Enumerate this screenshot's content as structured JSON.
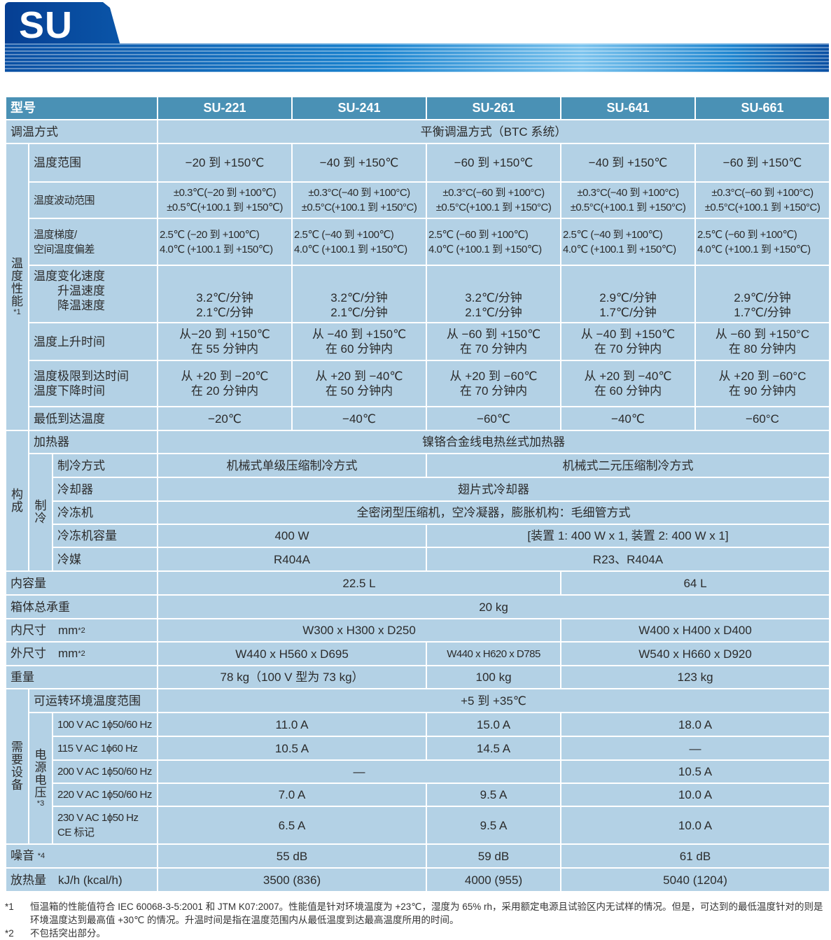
{
  "banner": {
    "title": "SU"
  },
  "colors": {
    "header_bg": "#4a91b5",
    "cell_bg": "#b3d1e5",
    "banner_blue": "#0a4fa3"
  },
  "groups": {
    "perf": {
      "label": "温度性能",
      "note": "*1"
    },
    "build": {
      "label": "构成",
      "note": ""
    },
    "need": {
      "label": "需要设备",
      "note": ""
    }
  },
  "subgroups": {
    "cool": {
      "label": "制冷",
      "note": ""
    },
    "power": {
      "label": "电源电压",
      "note": "*3"
    }
  },
  "table": {
    "header": {
      "label": "型号",
      "models": [
        "SU-221",
        "SU-241",
        "SU-261",
        "SU-641",
        "SU-661"
      ]
    },
    "rows": [
      {
        "label": "调温方式",
        "cells": [
          {
            "t": "平衡调温方式（BTC 系统）",
            "span": 5
          }
        ]
      },
      {
        "group": "perf",
        "label": "温度范围",
        "cells": [
          {
            "t": "−20 到 +150℃"
          },
          {
            "t": "−40 到 +150℃"
          },
          {
            "t": "−60 到 +150℃"
          },
          {
            "t": "−40 到 +150℃"
          },
          {
            "t": "−60 到 +150℃"
          }
        ]
      },
      {
        "group": "perf",
        "label": "温度波动范围",
        "small": true,
        "cells": [
          {
            "t": "±0.3℃(−20 到 +100℃)\n±0.5℃(+100.1 到 +150℃)"
          },
          {
            "t": "±0.3°C(−40 到 +100°C)\n±0.5°C(+100.1 到 +150°C)"
          },
          {
            "t": "±0.3°C(−60 到 +100°C)\n±0.5°C(+100.1 到 +150°C)"
          },
          {
            "t": "±0.3°C(−40 到 +100°C)\n±0.5°C(+100.1 到 +150°C)"
          },
          {
            "t": "±0.3°C(−60 到 +100°C)\n±0.5°C(+100.1 到 +150°C)"
          }
        ]
      },
      {
        "group": "perf",
        "label": "温度梯度/\n空间温度偏差",
        "small": true,
        "left": true,
        "cells": [
          {
            "t": "2.5℃ (−20 到 +100℃)\n4.0℃ (+100.1 到 +150℃)"
          },
          {
            "t": "2.5℃ (−40 到 +100℃)\n4.0℃ (+100.1 到 +150℃)"
          },
          {
            "t": "2.5℃ (−60 到 +100℃)\n4.0℃ (+100.1 到 +150℃)"
          },
          {
            "t": "2.5℃ (−40 到 +100℃)\n4.0℃ (+100.1 到 +150℃)"
          },
          {
            "t": "2.5℃ (−60 到 +100℃)\n4.0℃ (+100.1 到 +150℃)"
          }
        ]
      },
      {
        "group": "perf",
        "label": "温度变化速度",
        "sublabels": [
          "升温速度",
          "降温速度"
        ],
        "bottom": true,
        "cells": [
          {
            "t": "3.2℃/分钟\n2.1℃/分钟"
          },
          {
            "t": "3.2℃/分钟\n2.1℃/分钟"
          },
          {
            "t": "3.2℃/分钟\n2.1℃/分钟"
          },
          {
            "t": "2.9℃/分钟\n1.7℃/分钟"
          },
          {
            "t": "2.9℃/分钟\n1.7℃/分钟"
          }
        ]
      },
      {
        "group": "perf",
        "label": "温度上升时间",
        "cells": [
          {
            "t": "从−20 到 +150℃\n在 55 分钟内"
          },
          {
            "t": "从 −40 到 +150℃\n在 60 分钟内"
          },
          {
            "t": "从 −60 到 +150℃\n在 70 分钟内"
          },
          {
            "t": "从 −40 到 +150℃\n在 70 分钟内"
          },
          {
            "t": "从 −60 到 +150°C\n在 80 分钟内"
          }
        ]
      },
      {
        "group": "perf",
        "label": "温度极限到达时间\n温度下降时间",
        "cells": [
          {
            "t": "从 +20 到 −20℃\n在 20 分钟内"
          },
          {
            "t": "从 +20 到 −40℃\n在 50 分钟内"
          },
          {
            "t": "从 +20 到 −60℃\n在 70 分钟内"
          },
          {
            "t": "从 +20 到 −40℃\n在 60 分钟内"
          },
          {
            "t": "从 +20 到 −60°C\n在 90 分钟内"
          }
        ]
      },
      {
        "group": "perf",
        "label": "最低到达温度",
        "cells": [
          {
            "t": "−20℃"
          },
          {
            "t": "−40℃"
          },
          {
            "t": "−60℃"
          },
          {
            "t": "−40℃"
          },
          {
            "t": "−60°C"
          }
        ]
      },
      {
        "group": "build",
        "label": "加热器",
        "cells": [
          {
            "t": "镍铬合金线电热丝式加热器",
            "span": 5
          }
        ]
      },
      {
        "group": "build",
        "sub": "cool",
        "label": "制冷方式",
        "cells": [
          {
            "t": "机械式单级压缩制冷方式",
            "span": 2
          },
          {
            "t": "机械式二元压缩制冷方式",
            "span": 3
          }
        ]
      },
      {
        "group": "build",
        "sub": "cool",
        "label": "冷却器",
        "cells": [
          {
            "t": "翅片式冷却器",
            "span": 5
          }
        ]
      },
      {
        "group": "build",
        "sub": "cool",
        "label": "冷冻机",
        "cells": [
          {
            "t": "全密闭型压缩机，空冷凝器，膨胀机构：毛细管方式",
            "span": 5
          }
        ]
      },
      {
        "group": "build",
        "sub": "cool",
        "label": "冷冻机容量",
        "cells": [
          {
            "t": "400 W",
            "span": 2
          },
          {
            "t": "[装置 1: 400 W x 1, 装置 2: 400 W x 1]",
            "span": 3
          }
        ]
      },
      {
        "group": "build",
        "sub": "cool",
        "label": "冷媒",
        "cells": [
          {
            "t": "R404A",
            "span": 2
          },
          {
            "t": "R23、R404A",
            "span": 3
          }
        ]
      },
      {
        "label": "内容量",
        "cells": [
          {
            "t": "22.5 L",
            "span": 3
          },
          {
            "t": "64 L",
            "span": 2
          }
        ]
      },
      {
        "label": "箱体总承重",
        "cells": [
          {
            "t": "20 kg",
            "span": 5
          }
        ]
      },
      {
        "label": "内尺寸　mm",
        "note": "*2",
        "cells": [
          {
            "t": "W300 x H300 x D250",
            "span": 3
          },
          {
            "t": "W400 x H400 x D400",
            "span": 2
          }
        ]
      },
      {
        "label": "外尺寸　mm",
        "note": "*2",
        "cells": [
          {
            "t": "W440 x H560 x D695",
            "span": 2
          },
          {
            "t": "W440 x H620 x D785",
            "small": true
          },
          {
            "t": "W540 x H660 x D920",
            "span": 2
          }
        ]
      },
      {
        "label": "重量",
        "cells": [
          {
            "t": "78 kg（100 V 型为 73 kg）",
            "span": 2
          },
          {
            "t": "100 kg"
          },
          {
            "t": "123 kg",
            "span": 2
          }
        ]
      },
      {
        "group": "need",
        "label": "可运转环境温度范围",
        "cells": [
          {
            "t": "+5 到 +35℃",
            "span": 5
          }
        ]
      },
      {
        "group": "need",
        "sub": "power",
        "label": "100 V AC 1ϕ50/60 Hz",
        "small": true,
        "cells": [
          {
            "t": "11.0 A",
            "span": 2
          },
          {
            "t": "15.0 A"
          },
          {
            "t": "18.0 A",
            "span": 2
          }
        ]
      },
      {
        "group": "need",
        "sub": "power",
        "label": "115 V AC 1ϕ60 Hz",
        "small": true,
        "cells": [
          {
            "t": "10.5 A",
            "span": 2
          },
          {
            "t": "14.5 A"
          },
          {
            "t": "—",
            "span": 2
          }
        ]
      },
      {
        "group": "need",
        "sub": "power",
        "label": "200 V AC 1ϕ50/60 Hz",
        "small": true,
        "cells": [
          {
            "t": "—",
            "span": 3
          },
          {
            "t": "10.5 A",
            "span": 2
          }
        ]
      },
      {
        "group": "need",
        "sub": "power",
        "label": "220 V AC 1ϕ50/60 Hz",
        "small": true,
        "cells": [
          {
            "t": "7.0 A",
            "span": 2
          },
          {
            "t": "9.5 A"
          },
          {
            "t": "10.0 A",
            "span": 2
          }
        ]
      },
      {
        "group": "need",
        "sub": "power",
        "label": "230 V AC 1ϕ50 Hz\nCE 标记",
        "small": true,
        "cells": [
          {
            "t": "6.5 A",
            "span": 2
          },
          {
            "t": "9.5 A"
          },
          {
            "t": "10.0 A",
            "span": 2
          }
        ]
      },
      {
        "label": "噪音 ",
        "note": "*4",
        "cells": [
          {
            "t": "55 dB",
            "span": 2
          },
          {
            "t": "59 dB"
          },
          {
            "t": "61 dB",
            "span": 2
          }
        ]
      },
      {
        "label": "放热量　kJ/h (kcal/h)",
        "cells": [
          {
            "t": "3500 (836)",
            "span": 2
          },
          {
            "t": "4000 (955)"
          },
          {
            "t": "5040 (1204)",
            "span": 2
          }
        ]
      }
    ]
  },
  "footnotes": [
    {
      "key": "*1",
      "text": "恒温箱的性能值符合 IEC 60068-3-5:2001 和 JTM K07:2007。性能值是针对环境温度为 +23℃，湿度为 65% rh，采用额定电源且试验区内无试样的情况。但是，可达到的最低温度针对的则是环境温度达到最高值 +30℃ 的情况。升温时间是指在温度范围内从最低温度到达最高温度所用的时间。"
    },
    {
      "key": "*2",
      "text": "不包括突出部分。"
    }
  ]
}
